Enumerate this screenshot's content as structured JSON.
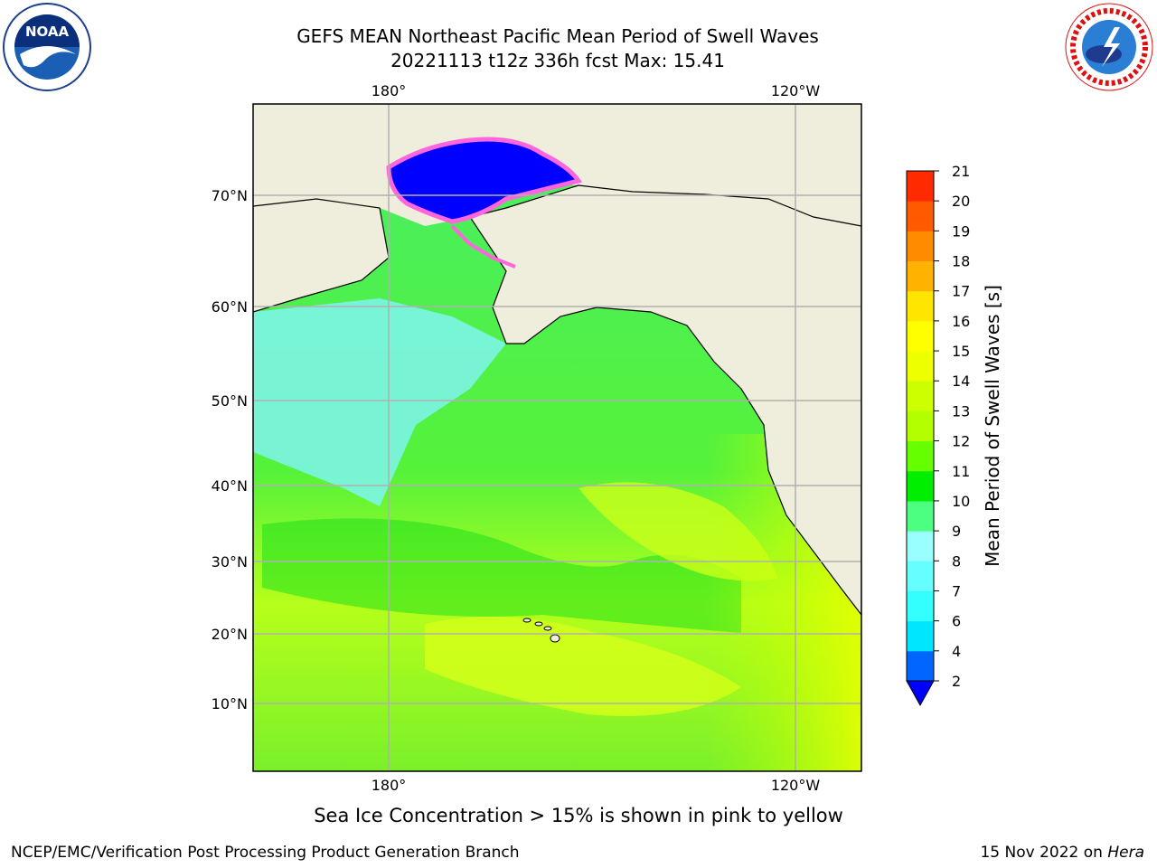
{
  "header": {
    "title_line1": "GEFS MEAN Northeast Pacific Mean Period of Swell Waves",
    "title_line2": "20221113 t12z 336h fcst   Max: 15.41"
  },
  "logos": {
    "left": "noaa-logo",
    "right": "nws-logo"
  },
  "map": {
    "lon_labels": [
      "180°",
      "120°W"
    ],
    "lat_labels": [
      "70°N",
      "60°N",
      "50°N",
      "40°N",
      "30°N",
      "20°N",
      "10°N"
    ],
    "land_color": "#efeedc",
    "grid_color": "#b0b0b0"
  },
  "colorbar": {
    "label": "Mean Period of Swell Waves [s]",
    "ticks": [
      "2",
      "4",
      "6",
      "7",
      "8",
      "9",
      "10",
      "11",
      "12",
      "13",
      "14",
      "15",
      "16",
      "17",
      "18",
      "19",
      "20",
      "21"
    ],
    "colors": [
      "#0066ff",
      "#00e6ff",
      "#33ffff",
      "#66ffff",
      "#99ffff",
      "#4dff80",
      "#00ee00",
      "#66ff00",
      "#b3ff00",
      "#ccff00",
      "#eeff00",
      "#ffff00",
      "#ffe600",
      "#ffb300",
      "#ff8c00",
      "#ff5a00",
      "#ff2a00"
    ],
    "under_color": "#0000ff"
  },
  "caption": "Sea Ice Concentration > 15% is shown in pink to yellow",
  "footer": {
    "left": "NCEP/EMC/Verification Post Processing Product Generation Branch",
    "right_date": "15 Nov 2022 on ",
    "right_host": "Hera"
  }
}
